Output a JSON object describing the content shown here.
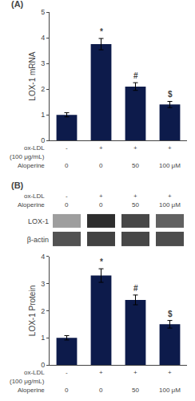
{
  "chart_data": [
    {
      "type": "bar",
      "title": "(A)",
      "ylabel": "LOX-1 mRNA",
      "values": [
        1.0,
        3.75,
        2.1,
        1.4
      ],
      "errors": [
        0.08,
        0.22,
        0.15,
        0.12
      ],
      "color": "#0d1b4b",
      "ylim": [
        0,
        5
      ],
      "yticks": [
        0,
        1,
        2,
        3,
        4,
        5
      ],
      "grid": false,
      "tick_labels": "y",
      "annotations": [
        null,
        "*",
        "#",
        "$"
      ],
      "category_rows": [
        {
          "name": "ox-LDL",
          "note": "(100 μg/mL)",
          "labels": [
            "-",
            "+",
            "+",
            "+"
          ]
        },
        {
          "name": "Aloperine",
          "labels": [
            "0",
            "0",
            "50",
            "100 μM"
          ]
        }
      ]
    },
    {
      "type": "heatmap",
      "title": "(B)",
      "rows": [
        "LOX-1",
        "β-actin"
      ],
      "cells": [
        [
          0.38,
          0.82,
          0.72,
          0.62
        ],
        [
          0.68,
          0.74,
          0.72,
          0.7
        ]
      ],
      "zlim": [
        0,
        1
      ],
      "category_rows": [
        {
          "name": "ox-LDL",
          "labels": [
            "-",
            "+",
            "+",
            "+"
          ]
        },
        {
          "name": "Aloperine",
          "labels": [
            "0",
            "0",
            "50",
            "100 μM"
          ]
        }
      ]
    },
    {
      "type": "bar",
      "ylabel": "LOX-1 Protein",
      "values": [
        1.0,
        3.3,
        2.4,
        1.5
      ],
      "errors": [
        0.08,
        0.25,
        0.18,
        0.14
      ],
      "color": "#0d1b4b",
      "ylim": [
        0,
        4
      ],
      "yticks": [
        0,
        1,
        2,
        3,
        4
      ],
      "grid": false,
      "tick_labels": "y",
      "annotations": [
        null,
        "*",
        "#",
        "$"
      ],
      "category_rows": [
        {
          "name": "ox-LDL",
          "note": "(100 μg/mL)",
          "labels": [
            "-",
            "+",
            "+",
            "+"
          ]
        },
        {
          "name": "Aloperine",
          "labels": [
            "0",
            "0",
            "50",
            "100 μM"
          ]
        }
      ]
    }
  ]
}
